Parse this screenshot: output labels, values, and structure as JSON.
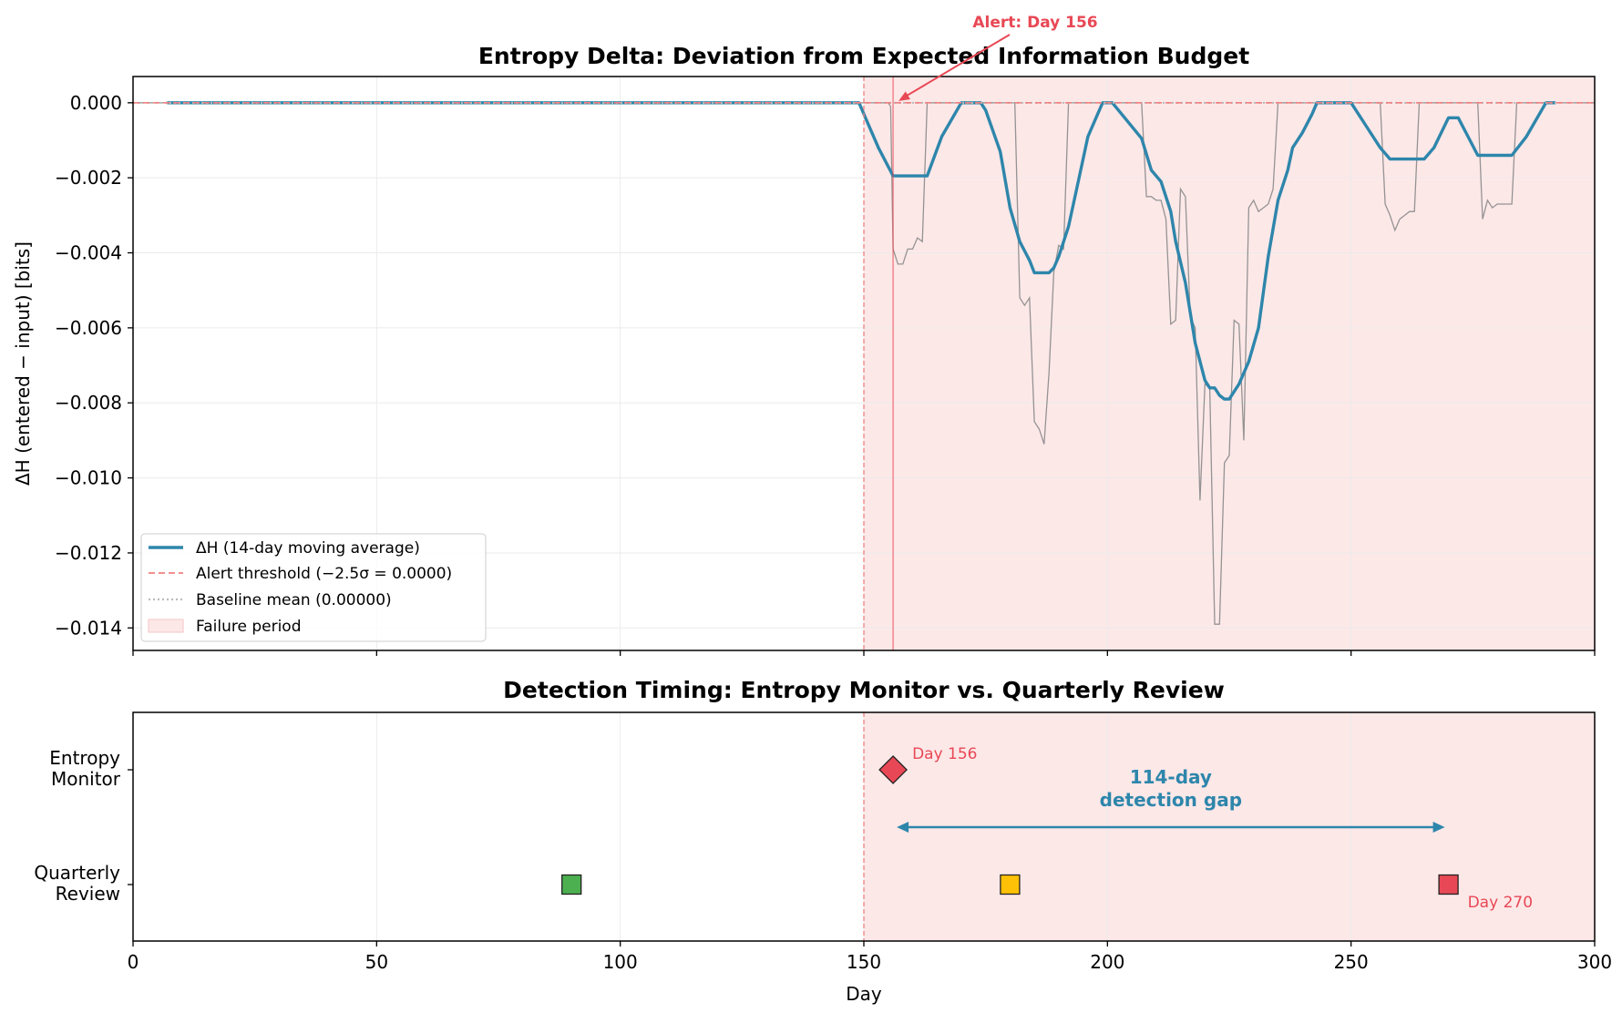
{
  "colors": {
    "ma_line": "#2e86ab",
    "raw_line": "#8a8a8a",
    "alert": "#e84855",
    "threshold": "#f08080",
    "baseline": "#bbbbbb",
    "failure_fill": "#fde8e8",
    "green": "#4caf50",
    "amber": "#ffc107",
    "grid": "#ebebeb"
  },
  "chart_data": [
    {
      "type": "line",
      "title": "Entropy Delta: Deviation from Expected Information Budget",
      "xlabel": "",
      "ylabel": "ΔH (entered − input) [bits]",
      "xlim": [
        0,
        300
      ],
      "ylim": [
        -0.0146,
        0.0007
      ],
      "x_ticks": [
        0,
        50,
        100,
        150,
        200,
        250,
        300
      ],
      "x_tick_labels": [
        "0",
        "50",
        "100",
        "150",
        "200",
        "250",
        "300"
      ],
      "y_ticks": [
        0.0,
        -0.002,
        -0.004,
        -0.006,
        -0.008,
        -0.01,
        -0.012,
        -0.014
      ],
      "y_tick_labels": [
        "0.000",
        "−0.002",
        "−0.004",
        "−0.006",
        "−0.008",
        "−0.010",
        "−0.012",
        "−0.014"
      ],
      "grid": true,
      "legend_position": "lower-left",
      "failure_period": [
        150,
        300
      ],
      "alert_day": 156,
      "threshold": 0.0,
      "baseline": 0.0,
      "annotation": "Alert: Day 156",
      "legend": [
        "ΔH (14-day moving average)",
        "Alert threshold (−2.5σ = 0.0000)",
        "Baseline mean (0.00000)",
        "Failure period"
      ],
      "series": [
        {
          "name": "ΔH (14-day moving average)",
          "points": [
            [
              7,
              0
            ],
            [
              149,
              0
            ],
            [
              150,
              -0.0003
            ],
            [
              153,
              -0.0012
            ],
            [
              156,
              -0.00195
            ],
            [
              163,
              -0.00195
            ],
            [
              166,
              -0.0009
            ],
            [
              170,
              0
            ],
            [
              174,
              0
            ],
            [
              175,
              -0.0002
            ],
            [
              178,
              -0.0013
            ],
            [
              180,
              -0.0028
            ],
            [
              182,
              -0.0037
            ],
            [
              184,
              -0.0042
            ],
            [
              185,
              -0.00453
            ],
            [
              188,
              -0.00453
            ],
            [
              189,
              -0.0044
            ],
            [
              190,
              -0.0041
            ],
            [
              192,
              -0.0033
            ],
            [
              194,
              -0.0021
            ],
            [
              196,
              -0.0009
            ],
            [
              198,
              -0.0003
            ],
            [
              199,
              0
            ],
            [
              201,
              0
            ],
            [
              207,
              -0.00095
            ],
            [
              209,
              -0.0018
            ],
            [
              211,
              -0.0021
            ],
            [
              213,
              -0.0029
            ],
            [
              214,
              -0.0037
            ],
            [
              216,
              -0.0048
            ],
            [
              218,
              -0.0064
            ],
            [
              220,
              -0.0074
            ],
            [
              221,
              -0.0076
            ],
            [
              222,
              -0.0076
            ],
            [
              223,
              -0.0078
            ],
            [
              224,
              -0.0079
            ],
            [
              225,
              -0.0079
            ],
            [
              227,
              -0.0075
            ],
            [
              229,
              -0.0069
            ],
            [
              231,
              -0.006
            ],
            [
              233,
              -0.0041
            ],
            [
              235,
              -0.0026
            ],
            [
              237,
              -0.0018
            ],
            [
              238,
              -0.0012
            ],
            [
              240,
              -0.0008
            ],
            [
              242,
              -0.0003
            ],
            [
              243,
              0
            ],
            [
              250,
              0
            ],
            [
              253,
              -0.0006
            ],
            [
              256,
              -0.0012
            ],
            [
              258,
              -0.0015
            ],
            [
              265,
              -0.0015
            ],
            [
              267,
              -0.0012
            ],
            [
              270,
              -0.0004
            ],
            [
              271,
              -0.0004
            ],
            [
              272,
              -0.0004
            ],
            [
              274,
              -0.0009
            ],
            [
              276,
              -0.0014
            ],
            [
              283,
              -0.0014
            ],
            [
              286,
              -0.0009
            ],
            [
              290,
              0
            ],
            [
              292,
              0
            ]
          ]
        },
        {
          "name": "",
          "points": [
            [
              0,
              0
            ],
            [
              155,
              0
            ],
            [
              155.5,
              -0.0001
            ],
            [
              156,
              -0.0039
            ],
            [
              157,
              -0.0043
            ],
            [
              158,
              -0.0043
            ],
            [
              159,
              -0.0039
            ],
            [
              160,
              -0.0039
            ],
            [
              161,
              -0.0036
            ],
            [
              162,
              -0.0037
            ],
            [
              163,
              0
            ],
            [
              181,
              0
            ],
            [
              182,
              -0.0052
            ],
            [
              183,
              -0.0054
            ],
            [
              184,
              -0.0052
            ],
            [
              185,
              -0.0085
            ],
            [
              186,
              -0.0087
            ],
            [
              187,
              -0.0091
            ],
            [
              188,
              -0.0072
            ],
            [
              189,
              -0.0045
            ],
            [
              190,
              -0.0038
            ],
            [
              191,
              -0.0039
            ],
            [
              192,
              0
            ],
            [
              207,
              0
            ],
            [
              208,
              -0.0025
            ],
            [
              209,
              -0.0025
            ],
            [
              210,
              -0.0026
            ],
            [
              211,
              -0.0026
            ],
            [
              212,
              -0.0031
            ],
            [
              213,
              -0.0059
            ],
            [
              214,
              -0.0058
            ],
            [
              215,
              -0.0023
            ],
            [
              216,
              -0.0025
            ],
            [
              217,
              -0.0057
            ],
            [
              218,
              -0.006
            ],
            [
              219,
              -0.0106
            ],
            [
              220,
              -0.0075
            ],
            [
              221,
              -0.0076
            ],
            [
              222,
              -0.0139
            ],
            [
              223,
              -0.0139
            ],
            [
              224,
              -0.0096
            ],
            [
              225,
              -0.0094
            ],
            [
              226,
              -0.0058
            ],
            [
              227,
              -0.0059
            ],
            [
              228,
              -0.009
            ],
            [
              229,
              -0.0028
            ],
            [
              230,
              -0.0026
            ],
            [
              231,
              -0.0029
            ],
            [
              232,
              -0.0028
            ],
            [
              233,
              -0.0027
            ],
            [
              234,
              -0.0023
            ],
            [
              235,
              0
            ],
            [
              256,
              0
            ],
            [
              257,
              -0.0027
            ],
            [
              258,
              -0.003
            ],
            [
              259,
              -0.0034
            ],
            [
              260,
              -0.0031
            ],
            [
              261,
              -0.003
            ],
            [
              262,
              -0.0029
            ],
            [
              263,
              -0.0029
            ],
            [
              264,
              0
            ],
            [
              276,
              0
            ],
            [
              277,
              -0.0031
            ],
            [
              278,
              -0.0026
            ],
            [
              279,
              -0.0028
            ],
            [
              280,
              -0.0027
            ],
            [
              281,
              -0.0027
            ],
            [
              282,
              -0.0027
            ],
            [
              283,
              -0.0027
            ],
            [
              284,
              0
            ],
            [
              300,
              0
            ]
          ]
        }
      ]
    },
    {
      "type": "scatter",
      "title": "Detection Timing: Entropy Monitor vs. Quarterly Review",
      "xlabel": "Day",
      "xlim": [
        0,
        300
      ],
      "x_ticks": [
        0,
        50,
        100,
        150,
        200,
        250,
        300
      ],
      "x_tick_labels": [
        "0",
        "50",
        "100",
        "150",
        "200",
        "250",
        "300"
      ],
      "categories": [
        "Entropy Monitor",
        "Quarterly Review"
      ],
      "category_labels": [
        [
          "Entropy",
          "Monitor"
        ],
        [
          "Quarterly",
          "Review"
        ]
      ],
      "grid": true,
      "failure_period": [
        150,
        300
      ],
      "points": [
        {
          "x": 156,
          "category": "Entropy Monitor",
          "marker": "diamond",
          "color": "#e84855",
          "label": "Day 156"
        },
        {
          "x": 90,
          "category": "Quarterly Review",
          "marker": "square",
          "color": "#4caf50",
          "label": ""
        },
        {
          "x": 180,
          "category": "Quarterly Review",
          "marker": "square",
          "color": "#ffc107",
          "label": ""
        },
        {
          "x": 270,
          "category": "Quarterly Review",
          "marker": "square",
          "color": "#e84855",
          "label": "Day 270"
        }
      ],
      "gap": {
        "from": 156,
        "to": 270,
        "label_line1": "114-day",
        "label_line2": "detection gap"
      }
    }
  ]
}
